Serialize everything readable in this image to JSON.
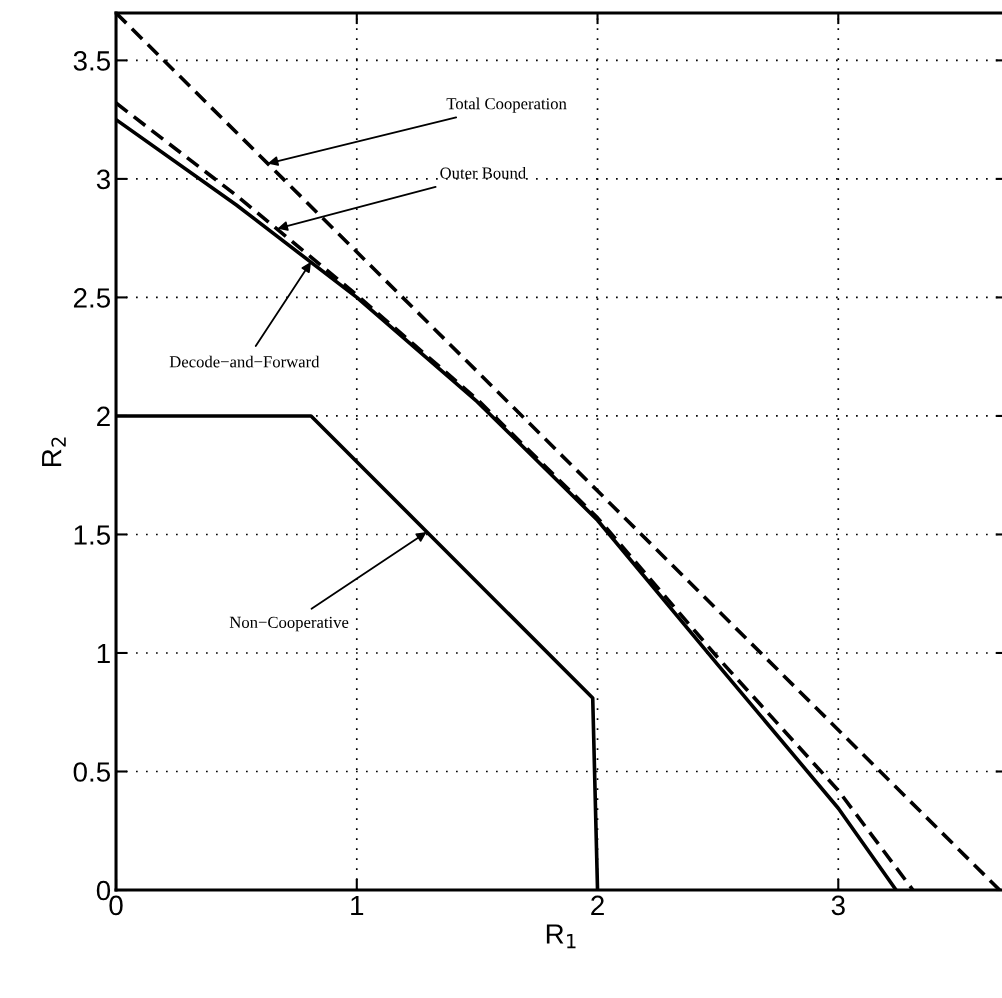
{
  "chart_data": {
    "type": "line",
    "xlabel": "R$_{1}$",
    "ylabel": "R$_{2}$",
    "xlim": [
      0,
      3.7
    ],
    "ylim": [
      0,
      3.7
    ],
    "xticks": [
      0,
      1,
      2,
      3
    ],
    "yticks": [
      0,
      0.5,
      1,
      1.5,
      2,
      2.5,
      3,
      3.5
    ],
    "grid": true,
    "marker": "none",
    "series": [
      {
        "color": "#000000",
        "line_style": "dashed",
        "x": [
          0,
          3.67
        ],
        "values": [
          3.7,
          0
        ]
      },
      {
        "color": "#000000",
        "line_style": "dashed",
        "x": [
          0,
          0.5,
          1,
          1.5,
          2,
          2.5,
          3,
          3.31
        ],
        "values": [
          3.32,
          2.93,
          2.51,
          2.07,
          1.57,
          0.98,
          0.42,
          0
        ]
      },
      {
        "color": "#000000",
        "line_style": "solid",
        "x": [
          0,
          0.5,
          1,
          1.5,
          2,
          2.5,
          3,
          3.24
        ],
        "values": [
          3.25,
          2.89,
          2.5,
          2.06,
          1.56,
          0.95,
          0.345,
          0
        ]
      },
      {
        "color": "#000000",
        "line_style": "solid",
        "x": [
          0,
          0.81,
          1.98,
          2.0
        ],
        "values": [
          2,
          2,
          0.81,
          0
        ]
      }
    ],
    "annotations": [
      {
        "text": "Total Cooperation",
        "x": 0.63,
        "y": 3.065
      },
      {
        "text": "Outer Bound",
        "x": 0.67,
        "y": 2.79
      },
      {
        "text": "Decode−and−Forward",
        "x": 0.81,
        "y": 2.65
      },
      {
        "text": "Non−Cooperative",
        "x": 1.29,
        "y": 1.51
      }
    ]
  }
}
